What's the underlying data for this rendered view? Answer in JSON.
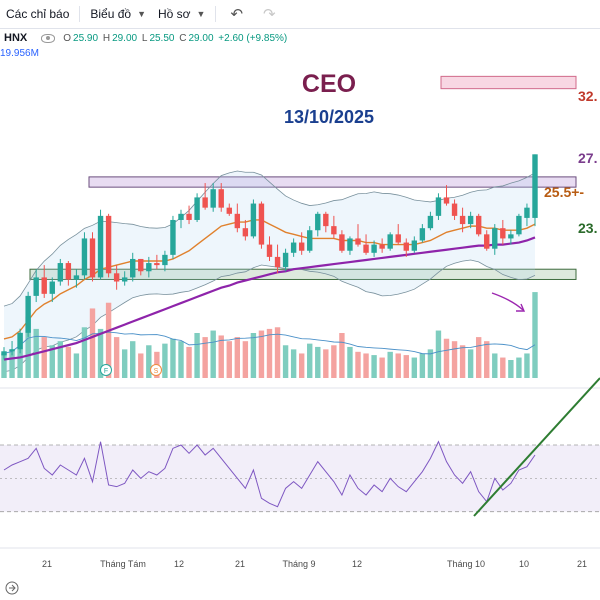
{
  "toolbar": {
    "indicators_label": "Các chỉ báo",
    "chart_label": "Biểu đồ",
    "profile_label": "Hồ sơ"
  },
  "legend": {
    "symbol": "HNX",
    "open_label": "O",
    "open": "25.90",
    "high_label": "H",
    "high": "29.00",
    "low_label": "L",
    "low": "25.50",
    "close_label": "C",
    "close": "29.00",
    "change": "+2.60 (+9.85%)",
    "volume": "19.956M"
  },
  "colors": {
    "up": "#26a69a",
    "down": "#ef5350",
    "ma_short": "#e0812d",
    "ma_long": "#8e24aa",
    "bb": "#78909c",
    "rsi": "#7e57c2",
    "trend": "#2e7d32",
    "title": "#7a1f4e",
    "date": "#1a3f8f"
  },
  "chart_data": {
    "type": "candlestick",
    "title": "CEO",
    "subtitle": "13/10/2025",
    "ylim": [
      18,
      33.5
    ],
    "x_tick_labels": [
      "21",
      "Tháng Tám",
      "12",
      "21",
      "Tháng 9",
      "12",
      "Tháng 10",
      "10",
      "21"
    ],
    "flag_labels": [
      "F",
      "S"
    ],
    "levels": [
      {
        "label": "32.",
        "low": 32.2,
        "high": 32.8
      },
      {
        "label": "27.",
        "low": 27.4,
        "high": 27.9
      },
      {
        "label": "25.5+-",
        "low": 25.5,
        "high": 25.5
      },
      {
        "label": "23.",
        "low": 22.9,
        "high": 23.4
      }
    ],
    "candles": [
      [
        19.2,
        19.6,
        19.0,
        19.4,
        30
      ],
      [
        19.4,
        19.9,
        19.2,
        19.5,
        35
      ],
      [
        19.5,
        20.5,
        19.3,
        20.3,
        55
      ],
      [
        20.3,
        22.3,
        20.1,
        22.1,
        75
      ],
      [
        22.1,
        23.4,
        21.8,
        23.0,
        60
      ],
      [
        23.0,
        23.6,
        22.0,
        22.2,
        50
      ],
      [
        22.2,
        23.0,
        21.8,
        22.8,
        40
      ],
      [
        22.8,
        23.9,
        22.6,
        23.7,
        45
      ],
      [
        23.7,
        23.8,
        22.6,
        22.9,
        38
      ],
      [
        22.9,
        23.4,
        22.5,
        23.1,
        30
      ],
      [
        23.1,
        25.2,
        22.9,
        24.9,
        62
      ],
      [
        24.9,
        25.2,
        22.8,
        23.0,
        85
      ],
      [
        23.0,
        26.3,
        22.9,
        26.0,
        60
      ],
      [
        26.0,
        26.1,
        23.0,
        23.2,
        92
      ],
      [
        23.2,
        23.6,
        22.4,
        22.8,
        50
      ],
      [
        22.8,
        23.3,
        22.6,
        23.0,
        35
      ],
      [
        23.0,
        24.2,
        22.8,
        23.9,
        45
      ],
      [
        23.9,
        23.9,
        23.1,
        23.3,
        30
      ],
      [
        23.3,
        24.0,
        23.0,
        23.7,
        40
      ],
      [
        23.7,
        24.1,
        23.4,
        23.6,
        32
      ],
      [
        23.6,
        24.3,
        23.3,
        24.1,
        42
      ],
      [
        24.1,
        26.0,
        23.9,
        25.8,
        48
      ],
      [
        25.8,
        26.3,
        25.4,
        26.1,
        45
      ],
      [
        26.1,
        26.5,
        25.6,
        25.8,
        38
      ],
      [
        25.8,
        27.1,
        25.7,
        26.9,
        55
      ],
      [
        26.9,
        27.6,
        26.3,
        26.4,
        50
      ],
      [
        26.4,
        27.6,
        26.2,
        27.3,
        58
      ],
      [
        27.3,
        27.6,
        26.2,
        26.4,
        52
      ],
      [
        26.4,
        26.6,
        26.0,
        26.1,
        45
      ],
      [
        26.1,
        26.6,
        25.2,
        25.4,
        50
      ],
      [
        25.4,
        25.8,
        24.8,
        25.0,
        45
      ],
      [
        25.0,
        26.8,
        24.9,
        26.6,
        55
      ],
      [
        26.6,
        26.7,
        24.4,
        24.6,
        58
      ],
      [
        24.6,
        25.0,
        23.8,
        24.0,
        60
      ],
      [
        24.0,
        24.6,
        23.2,
        23.5,
        62
      ],
      [
        23.5,
        24.4,
        23.3,
        24.2,
        40
      ],
      [
        24.2,
        24.9,
        24.0,
        24.7,
        35
      ],
      [
        24.7,
        25.2,
        24.1,
        24.3,
        30
      ],
      [
        24.3,
        25.5,
        24.2,
        25.3,
        42
      ],
      [
        25.3,
        26.2,
        25.0,
        26.1,
        38
      ],
      [
        26.1,
        26.2,
        25.2,
        25.5,
        35
      ],
      [
        25.5,
        26.0,
        24.9,
        25.1,
        40
      ],
      [
        25.1,
        25.3,
        24.2,
        24.3,
        55
      ],
      [
        24.3,
        25.0,
        24.1,
        24.9,
        38
      ],
      [
        24.9,
        25.6,
        24.5,
        24.6,
        32
      ],
      [
        24.6,
        25.1,
        24.1,
        24.2,
        30
      ],
      [
        24.2,
        24.8,
        24.0,
        24.6,
        28
      ],
      [
        24.6,
        24.9,
        24.2,
        24.4,
        25
      ],
      [
        24.4,
        25.2,
        24.3,
        25.1,
        32
      ],
      [
        25.1,
        25.6,
        24.6,
        24.7,
        30
      ],
      [
        24.7,
        24.9,
        24.0,
        24.3,
        28
      ],
      [
        24.3,
        25.0,
        24.2,
        24.8,
        25
      ],
      [
        24.8,
        25.6,
        24.7,
        25.4,
        30
      ],
      [
        25.4,
        26.2,
        25.3,
        26.0,
        35
      ],
      [
        26.0,
        27.1,
        25.8,
        26.9,
        58
      ],
      [
        26.9,
        27.5,
        26.5,
        26.6,
        48
      ],
      [
        26.6,
        26.8,
        25.8,
        26.0,
        45
      ],
      [
        26.0,
        26.4,
        25.2,
        25.6,
        40
      ],
      [
        25.6,
        26.2,
        25.4,
        26.0,
        35
      ],
      [
        26.0,
        26.1,
        25.0,
        25.1,
        50
      ],
      [
        25.1,
        25.3,
        24.3,
        24.4,
        45
      ],
      [
        24.4,
        25.6,
        24.1,
        25.4,
        30
      ],
      [
        25.4,
        25.8,
        24.6,
        24.9,
        25
      ],
      [
        24.9,
        25.3,
        24.6,
        25.1,
        22
      ],
      [
        25.1,
        26.1,
        25.0,
        26.0,
        25
      ],
      [
        25.9,
        26.6,
        25.5,
        26.4,
        30
      ],
      [
        25.9,
        29.0,
        25.5,
        29.0,
        105
      ]
    ],
    "ma_short": [
      20.0,
      20.1,
      20.4,
      20.9,
      21.4,
      21.7,
      21.9,
      22.2,
      22.4,
      22.6,
      22.9,
      23.1,
      23.4,
      23.5,
      23.6,
      23.7,
      23.8,
      23.8,
      23.8,
      23.8,
      23.8,
      23.9,
      24.1,
      24.3,
      24.6,
      24.9,
      25.2,
      25.5,
      25.6,
      25.7,
      25.7,
      25.8,
      25.8,
      25.6,
      25.4,
      25.2,
      25.1,
      25.0,
      24.9,
      24.9,
      24.9,
      24.9,
      24.8,
      24.8,
      24.8,
      24.7,
      24.7,
      24.6,
      24.6,
      24.6,
      24.6,
      24.6,
      24.7,
      24.8,
      25.0,
      25.2,
      25.3,
      25.4,
      25.5,
      25.5,
      25.4,
      25.4,
      25.3,
      25.3,
      25.3,
      25.4,
      25.6
    ],
    "ma_long": [
      19.0,
      19.05,
      19.1,
      19.2,
      19.3,
      19.4,
      19.5,
      19.6,
      19.7,
      19.8,
      19.95,
      20.1,
      20.25,
      20.4,
      20.55,
      20.7,
      20.85,
      21.0,
      21.15,
      21.3,
      21.45,
      21.6,
      21.75,
      21.9,
      22.05,
      22.2,
      22.35,
      22.5,
      22.6,
      22.75,
      22.85,
      22.95,
      23.05,
      23.15,
      23.25,
      23.3,
      23.4,
      23.45,
      23.5,
      23.55,
      23.6,
      23.65,
      23.7,
      23.75,
      23.8,
      23.85,
      23.9,
      23.95,
      24.0,
      24.05,
      24.1,
      24.15,
      24.2,
      24.25,
      24.3,
      24.35,
      24.4,
      24.45,
      24.5,
      24.55,
      24.55,
      24.6,
      24.6,
      24.65,
      24.7,
      24.8,
      24.95
    ],
    "rsi": [
      55,
      58,
      60,
      62,
      68,
      56,
      52,
      58,
      55,
      52,
      62,
      48,
      72,
      46,
      45,
      47,
      55,
      50,
      54,
      52,
      56,
      68,
      70,
      65,
      70,
      64,
      68,
      62,
      56,
      50,
      44,
      55,
      38,
      35,
      33,
      44,
      48,
      44,
      52,
      60,
      54,
      48,
      40,
      52,
      44,
      40,
      46,
      42,
      50,
      45,
      42,
      48,
      54,
      62,
      72,
      60,
      52,
      47,
      54,
      42,
      36,
      50,
      43,
      47,
      55,
      57,
      64
    ],
    "rsi_bands": [
      70,
      30
    ]
  }
}
